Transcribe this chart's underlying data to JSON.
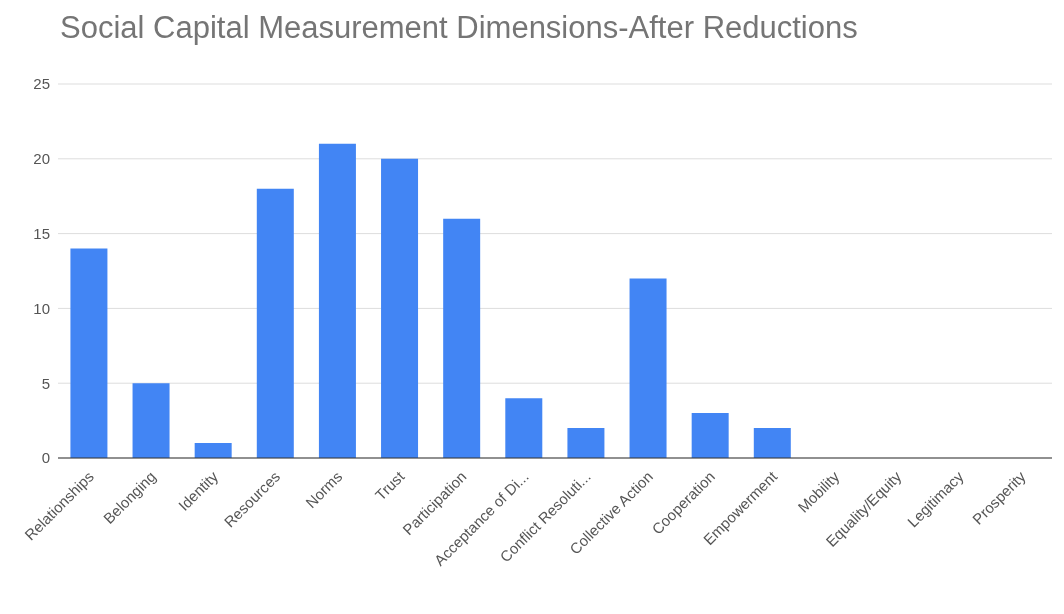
{
  "chart_data": {
    "type": "bar",
    "title": "Social Capital Measurement Dimensions-After Reductions",
    "categories": [
      "Relationships",
      "Belonging",
      "Identity",
      "Resources",
      "Norms",
      "Trust",
      "Participation",
      "Acceptance of Di...",
      "Conflict Resoluti...",
      "Collective Action",
      "Cooperation",
      "Empowerment",
      "Mobility",
      "Equality/Equity",
      "Legitimacy",
      "Prosperity"
    ],
    "values": [
      14,
      5,
      1,
      18,
      21,
      20,
      16,
      4,
      2,
      12,
      3,
      2,
      0,
      0,
      0,
      0
    ],
    "color": "#4285f4",
    "ylim": [
      0,
      25
    ],
    "yticks": [
      0,
      5,
      10,
      15,
      20,
      25
    ],
    "grid": "y"
  }
}
